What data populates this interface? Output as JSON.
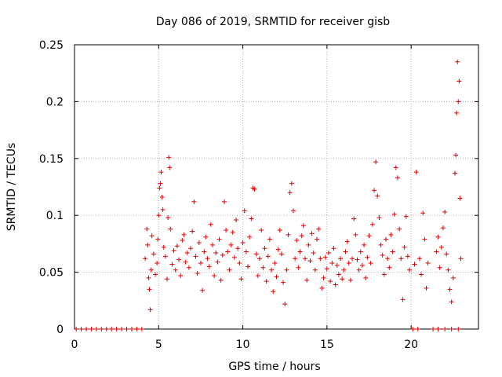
{
  "chart_data": {
    "type": "scatter",
    "title": "Day 086 of 2019, SRMTID for receiver gisb",
    "xlabel": "GPS time / hours",
    "ylabel": "SRMTID / TECUs",
    "xlim": [
      0,
      24
    ],
    "ylim": [
      0,
      0.25
    ],
    "grid": true,
    "marker": "+",
    "series_color": "#e00000",
    "x_ticks": [
      0,
      5,
      10,
      15,
      20
    ],
    "x_tick_labels": [
      "0",
      "5",
      "10",
      "15",
      "20"
    ],
    "y_ticks": [
      0,
      0.05,
      0.1,
      0.15,
      0.2,
      0.25
    ],
    "y_tick_labels": [
      "0",
      "0.05",
      "0.1",
      "0.15",
      "0.2",
      "0.25"
    ],
    "series": [
      {
        "name": "SRMTID",
        "points": [
          [
            0.1,
            0
          ],
          [
            0.4,
            0
          ],
          [
            0.7,
            0
          ],
          [
            1.0,
            0
          ],
          [
            1.3,
            0
          ],
          [
            1.6,
            0
          ],
          [
            1.9,
            0
          ],
          [
            2.2,
            0
          ],
          [
            2.5,
            0
          ],
          [
            2.8,
            0
          ],
          [
            3.1,
            0
          ],
          [
            3.4,
            0
          ],
          [
            3.7,
            0
          ],
          [
            4.0,
            0
          ],
          [
            4.2,
            0.062
          ],
          [
            4.3,
            0.088
          ],
          [
            4.35,
            0.074
          ],
          [
            4.4,
            0.045
          ],
          [
            4.45,
            0.035
          ],
          [
            4.5,
            0.017
          ],
          [
            4.55,
            0.052
          ],
          [
            4.6,
            0.082
          ],
          [
            4.7,
            0.066
          ],
          [
            4.8,
            0.048
          ],
          [
            4.9,
            0.058
          ],
          [
            4.95,
            0.079
          ],
          [
            5.0,
            0.1
          ],
          [
            5.05,
            0.124
          ],
          [
            5.1,
            0.128
          ],
          [
            5.15,
            0.138
          ],
          [
            5.2,
            0.116
          ],
          [
            5.25,
            0.105
          ],
          [
            5.3,
            0.072
          ],
          [
            5.4,
            0.064
          ],
          [
            5.5,
            0.044
          ],
          [
            5.55,
            0.098
          ],
          [
            5.6,
            0.151
          ],
          [
            5.65,
            0.142
          ],
          [
            5.7,
            0.088
          ],
          [
            5.8,
            0.057
          ],
          [
            5.9,
            0.069
          ],
          [
            6.0,
            0.052
          ],
          [
            6.1,
            0.073
          ],
          [
            6.2,
            0.061
          ],
          [
            6.3,
            0.047
          ],
          [
            6.4,
            0.078
          ],
          [
            6.5,
            0.083
          ],
          [
            6.6,
            0.059
          ],
          [
            6.7,
            0.067
          ],
          [
            6.8,
            0.054
          ],
          [
            6.9,
            0.071
          ],
          [
            7.0,
            0.086
          ],
          [
            7.1,
            0.112
          ],
          [
            7.2,
            0.064
          ],
          [
            7.3,
            0.049
          ],
          [
            7.4,
            0.076
          ],
          [
            7.5,
            0.058
          ],
          [
            7.6,
            0.034
          ],
          [
            7.7,
            0.068
          ],
          [
            7.8,
            0.081
          ],
          [
            7.9,
            0.062
          ],
          [
            8.0,
            0.055
          ],
          [
            8.1,
            0.092
          ],
          [
            8.2,
            0.074
          ],
          [
            8.3,
            0.047
          ],
          [
            8.4,
            0.067
          ],
          [
            8.5,
            0.059
          ],
          [
            8.6,
            0.079
          ],
          [
            8.7,
            0.043
          ],
          [
            8.8,
            0.065
          ],
          [
            8.9,
            0.112
          ],
          [
            9.0,
            0.087
          ],
          [
            9.1,
            0.068
          ],
          [
            9.2,
            0.052
          ],
          [
            9.3,
            0.074
          ],
          [
            9.4,
            0.085
          ],
          [
            9.5,
            0.063
          ],
          [
            9.6,
            0.096
          ],
          [
            9.7,
            0.071
          ],
          [
            9.8,
            0.058
          ],
          [
            9.9,
            0.044
          ],
          [
            10.0,
            0.076
          ],
          [
            10.1,
            0.104
          ],
          [
            10.2,
            0.068
          ],
          [
            10.3,
            0.055
          ],
          [
            10.4,
            0.081
          ],
          [
            10.5,
            0.097
          ],
          [
            10.6,
            0.124
          ],
          [
            10.7,
            0.123
          ],
          [
            10.8,
            0.066
          ],
          [
            10.9,
            0.047
          ],
          [
            11.0,
            0.062
          ],
          [
            11.1,
            0.087
          ],
          [
            11.2,
            0.054
          ],
          [
            11.3,
            0.071
          ],
          [
            11.4,
            0.042
          ],
          [
            11.5,
            0.064
          ],
          [
            11.6,
            0.079
          ],
          [
            11.7,
            0.052
          ],
          [
            11.8,
            0.033
          ],
          [
            11.9,
            0.058
          ],
          [
            12.0,
            0.046
          ],
          [
            12.1,
            0.07
          ],
          [
            12.2,
            0.087
          ],
          [
            12.3,
            0.066
          ],
          [
            12.4,
            0.041
          ],
          [
            12.5,
            0.022
          ],
          [
            12.6,
            0.052
          ],
          [
            12.7,
            0.083
          ],
          [
            12.8,
            0.12
          ],
          [
            12.9,
            0.128
          ],
          [
            13.0,
            0.104
          ],
          [
            13.1,
            0.062
          ],
          [
            13.2,
            0.078
          ],
          [
            13.3,
            0.054
          ],
          [
            13.4,
            0.068
          ],
          [
            13.5,
            0.082
          ],
          [
            13.6,
            0.091
          ],
          [
            13.7,
            0.062
          ],
          [
            13.8,
            0.043
          ],
          [
            13.9,
            0.074
          ],
          [
            14.0,
            0.06
          ],
          [
            14.1,
            0.084
          ],
          [
            14.2,
            0.067
          ],
          [
            14.3,
            0.052
          ],
          [
            14.4,
            0.079
          ],
          [
            14.5,
            0.088
          ],
          [
            14.6,
            0.062
          ],
          [
            14.7,
            0.036
          ],
          [
            14.8,
            0.045
          ],
          [
            14.9,
            0.063
          ],
          [
            15.0,
            0.053
          ],
          [
            15.1,
            0.067
          ],
          [
            15.2,
            0.042
          ],
          [
            15.3,
            0.058
          ],
          [
            15.4,
            0.071
          ],
          [
            15.5,
            0.039
          ],
          [
            15.6,
            0.056
          ],
          [
            15.7,
            0.048
          ],
          [
            15.8,
            0.062
          ],
          [
            15.9,
            0.044
          ],
          [
            16.0,
            0.052
          ],
          [
            16.1,
            0.068
          ],
          [
            16.2,
            0.077
          ],
          [
            16.3,
            0.058
          ],
          [
            16.4,
            0.043
          ],
          [
            16.5,
            0.062
          ],
          [
            16.6,
            0.097
          ],
          [
            16.7,
            0.083
          ],
          [
            16.8,
            0.061
          ],
          [
            16.9,
            0.052
          ],
          [
            17.0,
            0.068
          ],
          [
            17.1,
            0.056
          ],
          [
            17.2,
            0.074
          ],
          [
            17.3,
            0.045
          ],
          [
            17.4,
            0.063
          ],
          [
            17.5,
            0.082
          ],
          [
            17.6,
            0.058
          ],
          [
            17.7,
            0.092
          ],
          [
            17.8,
            0.122
          ],
          [
            17.9,
            0.147
          ],
          [
            18.0,
            0.117
          ],
          [
            18.1,
            0.098
          ],
          [
            18.2,
            0.074
          ],
          [
            18.3,
            0.065
          ],
          [
            18.4,
            0.048
          ],
          [
            18.5,
            0.079
          ],
          [
            18.6,
            0.062
          ],
          [
            18.7,
            0.054
          ],
          [
            18.8,
            0.083
          ],
          [
            18.9,
            0.068
          ],
          [
            19.0,
            0.101
          ],
          [
            19.1,
            0.142
          ],
          [
            19.2,
            0.133
          ],
          [
            19.3,
            0.088
          ],
          [
            19.4,
            0.062
          ],
          [
            19.5,
            0.026
          ],
          [
            19.6,
            0.072
          ],
          [
            19.7,
            0.099
          ],
          [
            19.8,
            0.064
          ],
          [
            19.9,
            0.052
          ],
          [
            20.2,
            0.057
          ],
          [
            20.3,
            0.138
          ],
          [
            20.5,
            0.062
          ],
          [
            20.6,
            0.048
          ],
          [
            20.7,
            0.102
          ],
          [
            20.8,
            0.079
          ],
          [
            20.9,
            0.036
          ],
          [
            21.0,
            0.058
          ],
          [
            21.5,
            0.068
          ],
          [
            21.6,
            0.081
          ],
          [
            21.7,
            0.054
          ],
          [
            21.8,
            0.072
          ],
          [
            21.9,
            0.089
          ],
          [
            22.0,
            0.103
          ],
          [
            22.1,
            0.066
          ],
          [
            22.2,
            0.052
          ],
          [
            22.3,
            0.035
          ],
          [
            22.4,
            0.024
          ],
          [
            22.5,
            0.045
          ],
          [
            22.6,
            0.137
          ],
          [
            22.65,
            0.153
          ],
          [
            22.7,
            0.19
          ],
          [
            22.75,
            0.235
          ],
          [
            22.8,
            0.2
          ],
          [
            22.85,
            0.218
          ],
          [
            22.9,
            0.115
          ],
          [
            22.95,
            0.062
          ],
          [
            20.1,
            0
          ],
          [
            20.4,
            0
          ],
          [
            21.3,
            0
          ],
          [
            21.6,
            0
          ],
          [
            22.0,
            0
          ],
          [
            22.4,
            0
          ],
          [
            22.8,
            0
          ]
        ]
      }
    ]
  }
}
